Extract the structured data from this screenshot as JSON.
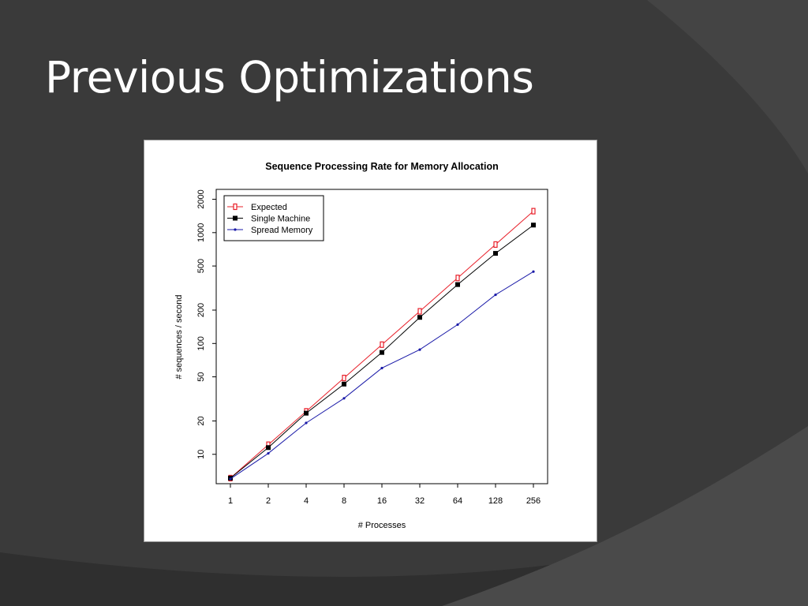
{
  "slide": {
    "title": "Previous Optimizations",
    "colors": {
      "background": "#3a3a3a",
      "swoosh_dark": "#2f2f2f",
      "swoosh_light": "#4a4a4a",
      "title_text": "#ffffff"
    }
  },
  "chart_data": {
    "type": "line",
    "title": "Sequence Processing Rate for Memory Allocation",
    "xlabel": "# Processes",
    "ylabel": "# sequences / second",
    "x_scale": "log2",
    "y_scale": "log",
    "categories": [
      "1",
      "2",
      "4",
      "8",
      "16",
      "32",
      "64",
      "128",
      "256"
    ],
    "x": [
      1,
      2,
      4,
      8,
      16,
      32,
      64,
      128,
      256
    ],
    "y_ticks": [
      10,
      20,
      50,
      100,
      200,
      500,
      1000,
      2000
    ],
    "ylim": [
      5.8,
      2300
    ],
    "grid": false,
    "legend_position": "top-left",
    "series": [
      {
        "name": "Expected",
        "color": "#e8202a",
        "marker": "open-square",
        "values": [
          6.1,
          12.2,
          24.4,
          48.8,
          97.6,
          195,
          390,
          781,
          1562
        ]
      },
      {
        "name": "Single Machine",
        "color": "#000000",
        "marker": "filled-square",
        "values": [
          6.1,
          11.5,
          23.5,
          43,
          83,
          172,
          340,
          650,
          1170
        ]
      },
      {
        "name": "Spread Memory",
        "color": "#1a1aa8",
        "marker": "dot",
        "values": [
          6.0,
          10.2,
          19.2,
          32,
          60,
          88,
          148,
          275,
          445
        ]
      }
    ]
  }
}
